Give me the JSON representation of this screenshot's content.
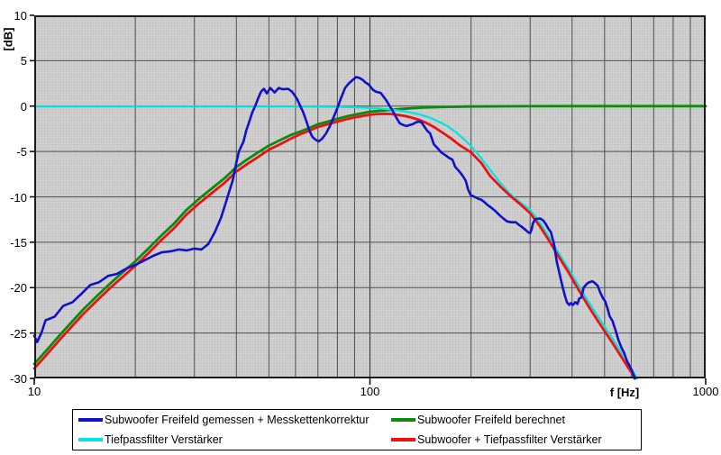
{
  "chart_data": {
    "type": "line",
    "title": "",
    "x_axis": {
      "label": "f [Hz]",
      "scale": "log",
      "min": 10,
      "max": 1000,
      "tick_labels": [
        "10",
        "100",
        "1000"
      ],
      "tick_values": [
        10,
        100,
        1000
      ],
      "minor_gridlines": [
        20,
        30,
        40,
        50,
        60,
        70,
        80,
        90,
        100,
        200,
        300,
        400,
        500,
        600,
        700,
        800,
        900
      ]
    },
    "y_axis": {
      "label": "[dB]",
      "min": -30,
      "max": 10,
      "step": 5,
      "tick_labels": [
        "10",
        "5",
        "0",
        "-5",
        "-10",
        "-15",
        "-20",
        "-25",
        "-30"
      ],
      "tick_values": [
        10,
        5,
        0,
        -5,
        -10,
        -15,
        -20,
        -25,
        -30
      ]
    },
    "grid": true,
    "legend_position": "bottom",
    "legend_column_order": [
      0,
      2,
      1,
      3
    ],
    "colors": {
      "grid": "#4f4f4f",
      "decade_grid": "#303030",
      "border": "#1c1c1c",
      "plot_background": "#c7c7c7",
      "page_background": "#ffffff"
    },
    "series": [
      {
        "id": "measured-curve",
        "name": "Subwoofer Freifeld gemessen + Messkettenkorrektur",
        "color": "#1111cc",
        "width": 2.6,
        "points": [
          [
            10,
            -25.3
          ],
          [
            10.2,
            -26.0
          ],
          [
            10.5,
            -25.0
          ],
          [
            10.8,
            -23.6
          ],
          [
            11.5,
            -23.2
          ],
          [
            12.2,
            -22.0
          ],
          [
            13,
            -21.6
          ],
          [
            13.8,
            -20.7
          ],
          [
            14.7,
            -19.7
          ],
          [
            15.6,
            -19.4
          ],
          [
            16.6,
            -18.7
          ],
          [
            17.6,
            -18.5
          ],
          [
            18.8,
            -17.9
          ],
          [
            20,
            -17.5
          ],
          [
            21.3,
            -17.0
          ],
          [
            22.6,
            -16.5
          ],
          [
            24,
            -16.1
          ],
          [
            25.5,
            -16.0
          ],
          [
            27,
            -15.8
          ],
          [
            28.5,
            -15.9
          ],
          [
            30,
            -15.7
          ],
          [
            31.5,
            -15.8
          ],
          [
            33,
            -15.2
          ],
          [
            34.5,
            -13.9
          ],
          [
            36,
            -12.3
          ],
          [
            37,
            -10.9
          ],
          [
            38,
            -9.5
          ],
          [
            39,
            -8.2
          ],
          [
            40,
            -6.2
          ],
          [
            40.7,
            -5.0
          ],
          [
            42,
            -3.9
          ],
          [
            42.8,
            -2.7
          ],
          [
            43.7,
            -1.7
          ],
          [
            44.6,
            -0.7
          ],
          [
            45.5,
            0.0
          ],
          [
            46.5,
            0.9
          ],
          [
            47.4,
            1.6
          ],
          [
            48.3,
            1.9
          ],
          [
            49.3,
            1.4
          ],
          [
            50.5,
            2.0
          ],
          [
            52,
            1.5
          ],
          [
            53.5,
            2.0
          ],
          [
            55,
            1.85
          ],
          [
            57,
            1.9
          ],
          [
            58.5,
            1.6
          ],
          [
            59.4,
            1.3
          ],
          [
            60.7,
            0.76
          ],
          [
            62,
            0.0
          ],
          [
            63.3,
            -0.7
          ],
          [
            64.7,
            -1.7
          ],
          [
            66,
            -2.7
          ],
          [
            67.4,
            -3.4
          ],
          [
            68.8,
            -3.7
          ],
          [
            70.3,
            -3.9
          ],
          [
            72,
            -3.6
          ],
          [
            74,
            -3.0
          ],
          [
            76,
            -2.2
          ],
          [
            78,
            -1.2
          ],
          [
            80,
            -0.2
          ],
          [
            82,
            0.9
          ],
          [
            84.3,
            2.0
          ],
          [
            86.5,
            2.5
          ],
          [
            89,
            2.9
          ],
          [
            91,
            3.2
          ],
          [
            93,
            3.1
          ],
          [
            95,
            2.9
          ],
          [
            97,
            2.6
          ],
          [
            99,
            2.4
          ],
          [
            102,
            1.8
          ],
          [
            104,
            1.6
          ],
          [
            107.6,
            1.45
          ],
          [
            110,
            1.0
          ],
          [
            112,
            0.6
          ],
          [
            114.5,
            0.0
          ],
          [
            116.8,
            -0.5
          ],
          [
            119.5,
            -1.2
          ],
          [
            122.7,
            -1.9
          ],
          [
            126,
            -2.1
          ],
          [
            128.7,
            -2.2
          ],
          [
            131,
            -2.1
          ],
          [
            134,
            -2.0
          ],
          [
            137,
            -1.8
          ],
          [
            140,
            -1.7
          ],
          [
            142.5,
            -1.8
          ],
          [
            144.8,
            -2.2
          ],
          [
            148,
            -2.7
          ],
          [
            151,
            -3.0
          ],
          [
            155,
            -4.2
          ],
          [
            159.6,
            -4.7
          ],
          [
            163,
            -5.1
          ],
          [
            167.7,
            -5.4
          ],
          [
            172,
            -5.7
          ],
          [
            176,
            -5.9
          ],
          [
            179.5,
            -6.7
          ],
          [
            184.6,
            -7.2
          ],
          [
            189,
            -7.7
          ],
          [
            192.8,
            -8.2
          ],
          [
            196,
            -9.2
          ],
          [
            199.6,
            -9.8
          ],
          [
            205,
            -10.0
          ],
          [
            210,
            -10.2
          ],
          [
            214,
            -10.3
          ],
          [
            218,
            -10.5
          ],
          [
            224,
            -10.9
          ],
          [
            230,
            -11.2
          ],
          [
            237,
            -11.6
          ],
          [
            243,
            -12.0
          ],
          [
            250,
            -12.4
          ],
          [
            256,
            -12.7
          ],
          [
            264,
            -12.8
          ],
          [
            272,
            -12.8
          ],
          [
            278,
            -13.1
          ],
          [
            283,
            -13.3
          ],
          [
            290,
            -13.6
          ],
          [
            296,
            -13.9
          ],
          [
            300,
            -14.0
          ],
          [
            303,
            -13.6
          ],
          [
            306,
            -12.9
          ],
          [
            310,
            -12.5
          ],
          [
            316,
            -12.4
          ],
          [
            322,
            -12.4
          ],
          [
            328,
            -12.6
          ],
          [
            334,
            -13.0
          ],
          [
            340,
            -13.5
          ],
          [
            346,
            -13.9
          ],
          [
            353,
            -15.1
          ],
          [
            360,
            -17.1
          ],
          [
            365,
            -18.1
          ],
          [
            372,
            -19.4
          ],
          [
            380,
            -20.8
          ],
          [
            386,
            -21.6
          ],
          [
            392,
            -21.9
          ],
          [
            397,
            -21.7
          ],
          [
            402,
            -21.9
          ],
          [
            409,
            -21.6
          ],
          [
            415,
            -21.8
          ],
          [
            420,
            -21.2
          ],
          [
            426,
            -21.1
          ],
          [
            433,
            -20.0
          ],
          [
            442,
            -19.6
          ],
          [
            450,
            -19.4
          ],
          [
            460,
            -19.3
          ],
          [
            468,
            -19.5
          ],
          [
            477,
            -19.8
          ],
          [
            486,
            -20.6
          ],
          [
            495,
            -21.2
          ],
          [
            502,
            -21.5
          ],
          [
            510,
            -22.3
          ],
          [
            517,
            -23.1
          ],
          [
            528,
            -23.7
          ],
          [
            539,
            -24.7
          ],
          [
            550,
            -25.8
          ],
          [
            561,
            -26.6
          ],
          [
            572,
            -27.2
          ],
          [
            583,
            -28.1
          ],
          [
            595,
            -28.7
          ],
          [
            607,
            -29.4
          ],
          [
            616,
            -30.0
          ]
        ]
      },
      {
        "id": "calculated-curve",
        "name": "Subwoofer Freifeld berechnet",
        "color": "#0b8a0b",
        "width": 2.8,
        "points": [
          [
            10,
            -28.4
          ],
          [
            11,
            -26.7
          ],
          [
            12,
            -25.1
          ],
          [
            13,
            -23.7
          ],
          [
            14,
            -22.4
          ],
          [
            15.5,
            -20.8
          ],
          [
            17,
            -19.4
          ],
          [
            18.5,
            -18.2
          ],
          [
            20,
            -17.1
          ],
          [
            22,
            -15.6
          ],
          [
            24,
            -14.2
          ],
          [
            26,
            -13.0
          ],
          [
            28.3,
            -11.5
          ],
          [
            31,
            -10.2
          ],
          [
            34,
            -9.0
          ],
          [
            37,
            -7.9
          ],
          [
            40,
            -6.7
          ],
          [
            43,
            -5.9
          ],
          [
            46,
            -5.2
          ],
          [
            50,
            -4.35
          ],
          [
            54,
            -3.75
          ],
          [
            58,
            -3.2
          ],
          [
            62,
            -2.8
          ],
          [
            66,
            -2.4
          ],
          [
            70,
            -2.0
          ],
          [
            75,
            -1.7
          ],
          [
            80,
            -1.4
          ],
          [
            85,
            -1.15
          ],
          [
            90,
            -0.95
          ],
          [
            95,
            -0.78
          ],
          [
            100,
            -0.62
          ],
          [
            108,
            -0.5
          ],
          [
            116,
            -0.4
          ],
          [
            125,
            -0.3
          ],
          [
            135,
            -0.22
          ],
          [
            145,
            -0.16
          ],
          [
            160,
            -0.11
          ],
          [
            180,
            -0.07
          ],
          [
            200,
            -0.04
          ],
          [
            250,
            -0.02
          ],
          [
            300,
            -0.01
          ],
          [
            400,
            0
          ],
          [
            600,
            0
          ],
          [
            1000,
            0
          ]
        ]
      },
      {
        "id": "lowpass-curve",
        "name": "Tiefpassfilter Verstärker",
        "color": "#00e4e4",
        "width": 2.2,
        "points": [
          [
            10,
            -0.05
          ],
          [
            60,
            -0.05
          ],
          [
            80,
            -0.08
          ],
          [
            90,
            -0.12
          ],
          [
            100,
            -0.2
          ],
          [
            110,
            -0.3
          ],
          [
            120,
            -0.45
          ],
          [
            130,
            -0.65
          ],
          [
            140,
            -0.9
          ],
          [
            150,
            -1.25
          ],
          [
            160,
            -1.7
          ],
          [
            170,
            -2.2
          ],
          [
            180,
            -2.85
          ],
          [
            190,
            -3.6
          ],
          [
            200,
            -4.4
          ],
          [
            212,
            -5.5
          ],
          [
            228,
            -7.0
          ],
          [
            245,
            -8.5
          ],
          [
            262,
            -9.7
          ],
          [
            280,
            -10.6
          ],
          [
            300,
            -11.4
          ],
          [
            320,
            -12.8
          ],
          [
            340,
            -14.3
          ],
          [
            365,
            -16.2
          ],
          [
            390,
            -17.9
          ],
          [
            413,
            -19.4
          ],
          [
            440,
            -21.1
          ],
          [
            470,
            -22.8
          ],
          [
            500,
            -24.3
          ],
          [
            530,
            -25.7
          ],
          [
            560,
            -27.1
          ],
          [
            585,
            -28.2
          ],
          [
            605,
            -29.1
          ],
          [
            624,
            -30
          ]
        ]
      },
      {
        "id": "combined-curve",
        "name": "Subwoofer + Tiefpassfilter Verstärker",
        "color": "#ee1111",
        "width": 2.8,
        "points": [
          [
            10,
            -28.9
          ],
          [
            11,
            -27.2
          ],
          [
            12,
            -25.6
          ],
          [
            13,
            -24.2
          ],
          [
            14,
            -22.9
          ],
          [
            15.5,
            -21.3
          ],
          [
            17,
            -19.9
          ],
          [
            18.5,
            -18.7
          ],
          [
            20,
            -17.6
          ],
          [
            22,
            -16.1
          ],
          [
            24,
            -14.7
          ],
          [
            26,
            -13.5
          ],
          [
            28.3,
            -12.0
          ],
          [
            31,
            -10.7
          ],
          [
            34,
            -9.5
          ],
          [
            37,
            -8.4
          ],
          [
            40,
            -7.2
          ],
          [
            43,
            -6.4
          ],
          [
            46,
            -5.7
          ],
          [
            50,
            -4.8
          ],
          [
            54,
            -4.2
          ],
          [
            58,
            -3.6
          ],
          [
            62,
            -3.1
          ],
          [
            66,
            -2.7
          ],
          [
            70,
            -2.3
          ],
          [
            75,
            -2.0
          ],
          [
            80,
            -1.7
          ],
          [
            85,
            -1.45
          ],
          [
            90,
            -1.25
          ],
          [
            95,
            -1.1
          ],
          [
            100,
            -0.95
          ],
          [
            105,
            -0.88
          ],
          [
            110,
            -0.85
          ],
          [
            115,
            -0.87
          ],
          [
            120,
            -0.95
          ],
          [
            127,
            -1.1
          ],
          [
            134,
            -1.3
          ],
          [
            141,
            -1.55
          ],
          [
            148,
            -1.9
          ],
          [
            155,
            -2.3
          ],
          [
            165,
            -2.95
          ],
          [
            175,
            -3.6
          ],
          [
            185,
            -4.3
          ],
          [
            200,
            -5.1
          ],
          [
            215,
            -6.3
          ],
          [
            228,
            -7.7
          ],
          [
            245,
            -8.9
          ],
          [
            262,
            -9.9
          ],
          [
            280,
            -10.8
          ],
          [
            300,
            -11.8
          ],
          [
            320,
            -13.2
          ],
          [
            340,
            -14.7
          ],
          [
            365,
            -16.6
          ],
          [
            390,
            -18.3
          ],
          [
            413,
            -19.9
          ],
          [
            440,
            -21.6
          ],
          [
            470,
            -23.3
          ],
          [
            500,
            -24.8
          ],
          [
            530,
            -26.2
          ],
          [
            560,
            -27.6
          ],
          [
            585,
            -28.7
          ],
          [
            600,
            -29.3
          ],
          [
            614,
            -30
          ]
        ]
      }
    ],
    "draw_order": [
      1,
      2,
      3,
      0
    ]
  }
}
